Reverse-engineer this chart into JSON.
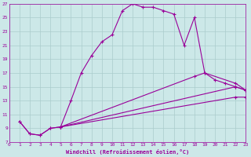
{
  "xlabel": "Windchill (Refroidissement éolien,°C)",
  "background_color": "#cce8e8",
  "grid_color": "#aacccc",
  "line_color": "#990099",
  "xlim": [
    0,
    23
  ],
  "ylim": [
    7,
    27
  ],
  "xticks": [
    0,
    1,
    2,
    3,
    4,
    5,
    6,
    7,
    8,
    9,
    10,
    11,
    12,
    13,
    14,
    15,
    16,
    17,
    18,
    19,
    20,
    21,
    22,
    23
  ],
  "yticks": [
    7,
    9,
    11,
    13,
    15,
    17,
    19,
    21,
    23,
    25,
    27
  ],
  "curve1_x": [
    1,
    2,
    3,
    4,
    5,
    6,
    7,
    8,
    9,
    10,
    11,
    12,
    13,
    14,
    15,
    16,
    17,
    18,
    19,
    20,
    21,
    22,
    23
  ],
  "curve1_y": [
    10,
    8.2,
    8.0,
    9.0,
    9.2,
    13.0,
    17.0,
    19.5,
    21.5,
    22.5,
    26.0,
    27.0,
    26.5,
    26.5,
    26.0,
    25.5,
    21.0,
    25.0,
    17.0,
    16.0,
    15.5,
    15.0,
    14.5
  ],
  "curve2_x": [
    1,
    2,
    3,
    4,
    5,
    22,
    23
  ],
  "curve2_y": [
    10,
    8.2,
    8.0,
    9.0,
    9.2,
    15.0,
    14.5
  ],
  "curve3_x": [
    5,
    18,
    19,
    22,
    23
  ],
  "curve3_y": [
    9.2,
    16.5,
    17.0,
    15.5,
    14.5
  ],
  "curve4_x": [
    5,
    22,
    23
  ],
  "curve4_y": [
    9.2,
    13.5,
    13.5
  ]
}
